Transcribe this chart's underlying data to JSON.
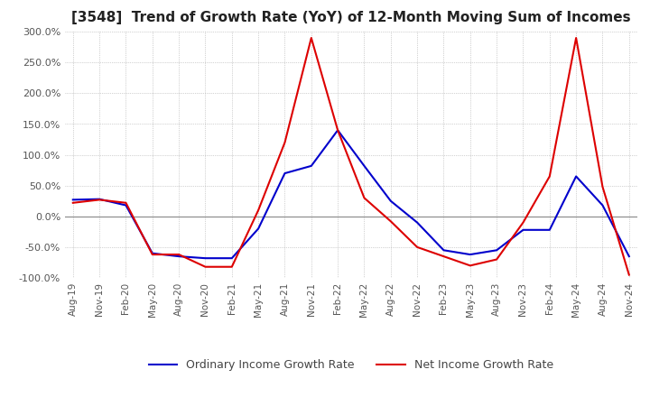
{
  "title": "[3548]  Trend of Growth Rate (YoY) of 12-Month Moving Sum of Incomes",
  "title_fontsize": 11,
  "ylim": [
    -100,
    300
  ],
  "yticks": [
    -100,
    -50,
    0,
    50,
    100,
    150,
    200,
    250,
    300
  ],
  "legend_labels": [
    "Ordinary Income Growth Rate",
    "Net Income Growth Rate"
  ],
  "legend_colors": [
    "#0000cc",
    "#dd0000"
  ],
  "background_color": "#ffffff",
  "grid_color": "#aaaaaa",
  "x_labels": [
    "Aug-19",
    "Nov-19",
    "Feb-20",
    "May-20",
    "Aug-20",
    "Nov-20",
    "Feb-21",
    "May-21",
    "Aug-21",
    "Nov-21",
    "Feb-22",
    "May-22",
    "Aug-22",
    "Nov-22",
    "Feb-23",
    "May-23",
    "Aug-23",
    "Nov-23",
    "Feb-24",
    "May-24",
    "Aug-24",
    "Nov-24"
  ],
  "ordinary_income": [
    27,
    28,
    18,
    -60,
    -65,
    -68,
    -68,
    -20,
    70,
    82,
    140,
    82,
    25,
    -10,
    -55,
    -62,
    -55,
    -22,
    -22,
    65,
    18,
    -65
  ],
  "net_income": [
    22,
    27,
    22,
    -62,
    -62,
    -82,
    -82,
    10,
    120,
    290,
    140,
    30,
    -8,
    -50,
    -65,
    -80,
    -70,
    -10,
    65,
    290,
    48,
    -95
  ]
}
